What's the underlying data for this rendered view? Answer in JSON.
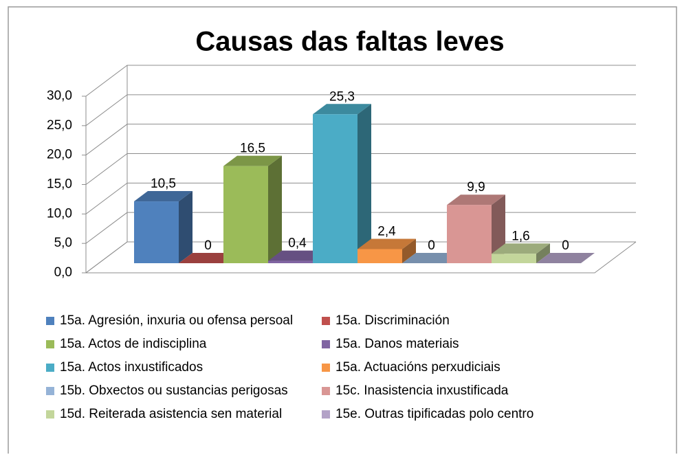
{
  "chart_data": {
    "type": "bar3d",
    "title": "Causas das faltas leves",
    "series": [
      {
        "name": "15a. Agresión, inxuria ou ofensa persoal",
        "color": "#4f81bd",
        "values": [
          10.5
        ],
        "value_labels": [
          "10,5"
        ]
      },
      {
        "name": "15a. Discriminación",
        "color": "#c0504d",
        "values": [
          0
        ],
        "value_labels": [
          "0"
        ]
      },
      {
        "name": "15a. Actos de indisciplina",
        "color": "#9bbb59",
        "values": [
          16.5
        ],
        "value_labels": [
          "16,5"
        ]
      },
      {
        "name": "15a. Danos materiais",
        "color": "#8064a2",
        "values": [
          0.4
        ],
        "value_labels": [
          "0,4"
        ]
      },
      {
        "name": "15a. Actos inxustificados",
        "color": "#4bacc6",
        "values": [
          25.3
        ],
        "value_labels": [
          "25,3"
        ]
      },
      {
        "name": "15a. Actuacións perxudiciais",
        "color": "#f79646",
        "values": [
          2.4
        ],
        "value_labels": [
          "2,4"
        ]
      },
      {
        "name": "15b. Obxectos ou sustancias perigosas",
        "color": "#95b3d7",
        "values": [
          0
        ],
        "value_labels": [
          "0"
        ]
      },
      {
        "name": "15c. Inasistencia inxustificada",
        "color": "#d99694",
        "values": [
          9.9
        ],
        "value_labels": [
          "9,9"
        ]
      },
      {
        "name": "15d. Reiterada asistencia sen material",
        "color": "#c3d69b",
        "values": [
          1.6
        ],
        "value_labels": [
          "1,6"
        ]
      },
      {
        "name": "15e. Outras tipificadas polo centro",
        "color": "#b3a2c7",
        "values": [
          0
        ],
        "value_labels": [
          "0"
        ]
      }
    ],
    "ylim": [
      0,
      30
    ],
    "yticks": [
      {
        "value": 0,
        "label": "0,0"
      },
      {
        "value": 5,
        "label": "5,0"
      },
      {
        "value": 10,
        "label": "10,0"
      },
      {
        "value": 15,
        "label": "15,0"
      },
      {
        "value": 20,
        "label": "20,0"
      },
      {
        "value": 25,
        "label": "25,0"
      },
      {
        "value": 30,
        "label": "30,0"
      }
    ],
    "grid": true,
    "legend": "bottom"
  }
}
